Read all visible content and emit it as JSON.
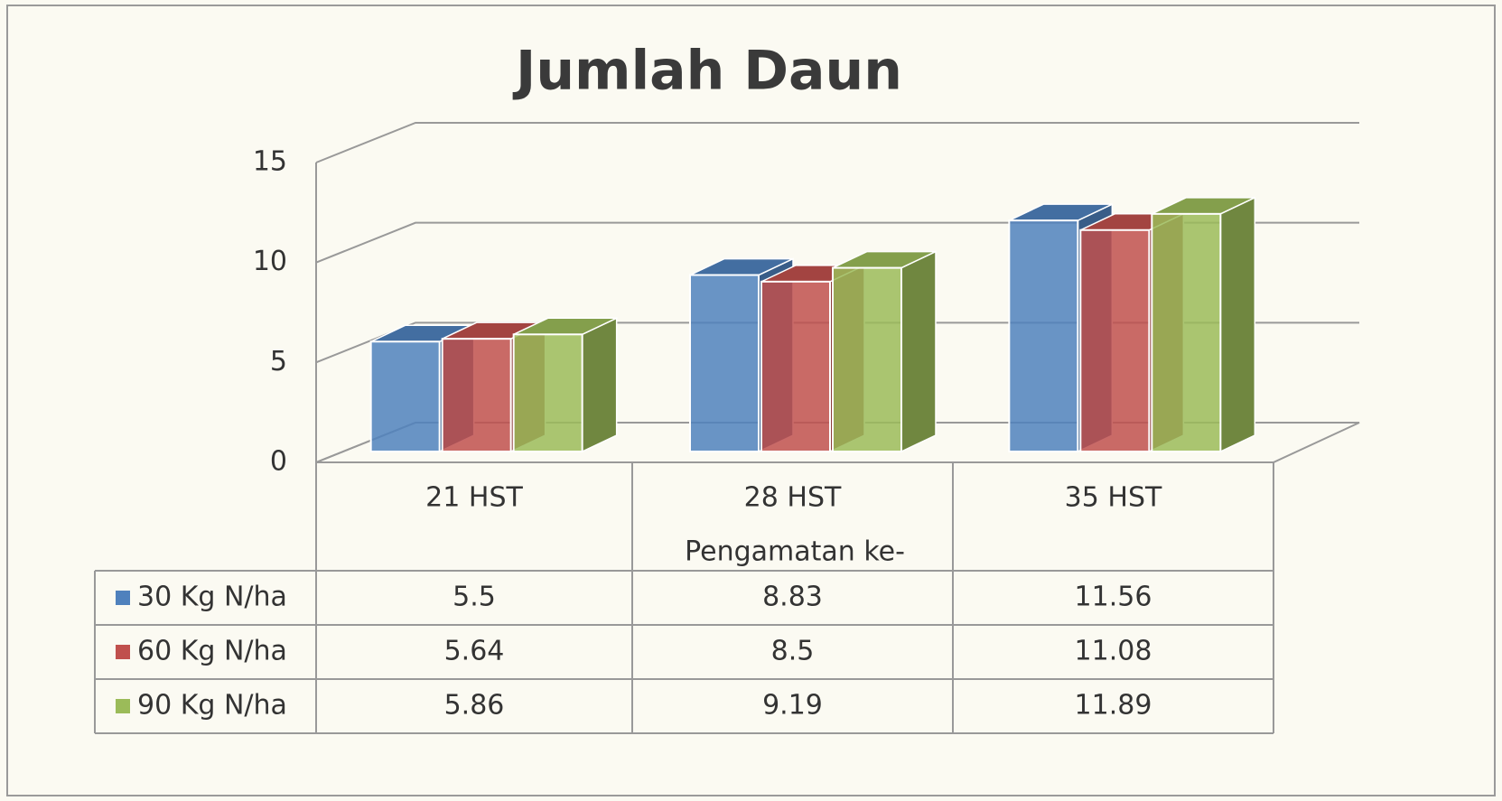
{
  "chart_data": {
    "type": "bar3d",
    "title": "Jumlah Daun",
    "x_label": "Pengamatan ke-",
    "categories": [
      "21 HST",
      "28 HST",
      "35 HST"
    ],
    "series": [
      {
        "name": "30 Kg N/ha",
        "color": "#4f81bd",
        "values": [
          5.5,
          8.83,
          11.56
        ]
      },
      {
        "name": "60 Kg N/ha",
        "color": "#c0504d",
        "values": [
          5.64,
          8.5,
          11.08
        ]
      },
      {
        "name": "90 Kg N/ha",
        "color": "#9bbb59",
        "values": [
          5.86,
          9.19,
          11.89
        ]
      }
    ],
    "ylim": [
      0,
      15
    ],
    "yticks": [
      0,
      5,
      10,
      15
    ],
    "grid": true,
    "data_table": true
  }
}
